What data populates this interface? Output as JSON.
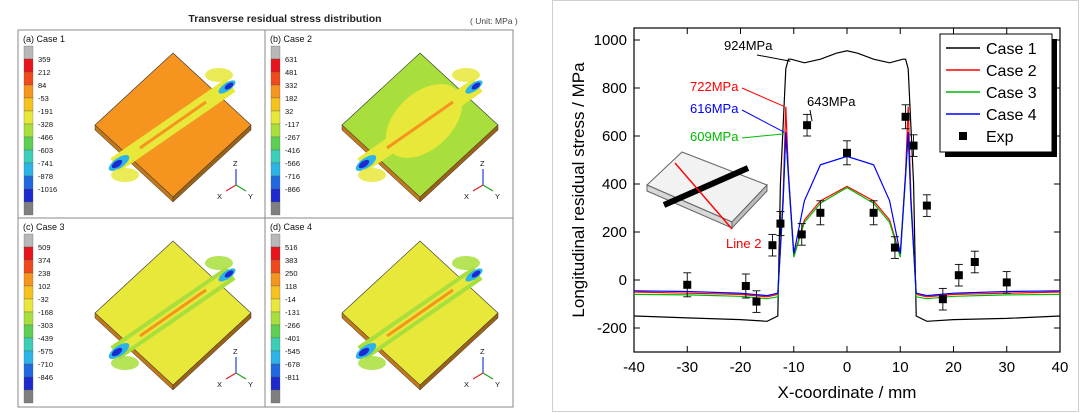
{
  "left_figure": {
    "title": "Transverse residual stress distribution",
    "unit": "( Unit: MPa )",
    "panels": [
      {
        "label": "(a) Case 1",
        "scale": [
          "359",
          "212",
          "84",
          "-53",
          "-191",
          "-328",
          "-466",
          "-603",
          "-741",
          "-878",
          "-1016"
        ]
      },
      {
        "label": "(b) Case 2",
        "scale": [
          "631",
          "481",
          "332",
          "182",
          "32",
          "-117",
          "-267",
          "-416",
          "-566",
          "-716",
          "-866"
        ]
      },
      {
        "label": "(c) Case 3",
        "scale": [
          "509",
          "374",
          "238",
          "102",
          "-32",
          "-168",
          "-303",
          "-439",
          "-575",
          "-710",
          "-846"
        ]
      },
      {
        "label": "(d) Case 4",
        "scale": [
          "516",
          "383",
          "250",
          "118",
          "-14",
          "-131",
          "-266",
          "-401",
          "-545",
          "-678",
          "-811"
        ]
      }
    ],
    "axes_labels": {
      "z": "Z",
      "x": "X",
      "y": "Y"
    },
    "colorbar_colors": [
      "#b8b8b8",
      "#e8141c",
      "#f04a1c",
      "#f5941e",
      "#f5c21e",
      "#e8e83a",
      "#a8df3c",
      "#5cd054",
      "#3ccfb8",
      "#2cb4e8",
      "#2068e0",
      "#1c2ad0",
      "#808080"
    ]
  },
  "chart_data": {
    "type": "line",
    "xlabel": "X-coordinate / mm",
    "ylabel": "Longitudinal residual stress / MPa",
    "xlim": [
      -40,
      40
    ],
    "ylim": [
      -300,
      1050
    ],
    "xticks": [
      -40,
      -30,
      -20,
      -10,
      0,
      10,
      20,
      30,
      40
    ],
    "yticks": [
      -200,
      0,
      200,
      400,
      600,
      800,
      1000
    ],
    "series": [
      {
        "name": "Case 1",
        "color": "#000000",
        "x": [
          -40,
          -30,
          -20,
          -15,
          -13,
          -12.5,
          -11.5,
          -11,
          -10.5,
          -8,
          -5,
          -2,
          0,
          2,
          5,
          8,
          10.5,
          11,
          11.5,
          12.5,
          13,
          15,
          20,
          30,
          40
        ],
        "y": [
          -150,
          -158,
          -165,
          -172,
          -150,
          400,
          880,
          920,
          920,
          905,
          920,
          945,
          955,
          945,
          920,
          905,
          920,
          920,
          880,
          400,
          -150,
          -172,
          -165,
          -160,
          -150
        ]
      },
      {
        "name": "Case 2",
        "color": "#ff0000",
        "x": [
          -40,
          -30,
          -20,
          -15,
          -13,
          -12,
          -11.5,
          -11,
          -10,
          -8,
          -5,
          0,
          5,
          8,
          10,
          11,
          11.5,
          12,
          13,
          15,
          20,
          30,
          40
        ],
        "y": [
          -50,
          -55,
          -60,
          -70,
          -60,
          350,
          722,
          450,
          100,
          250,
          330,
          390,
          330,
          250,
          100,
          450,
          722,
          350,
          -60,
          -70,
          -60,
          -55,
          -50
        ]
      },
      {
        "name": "Case 3",
        "color": "#00bb00",
        "x": [
          -40,
          -30,
          -20,
          -15,
          -13,
          -12,
          -11.5,
          -11,
          -10,
          -8,
          -5,
          0,
          5,
          8,
          10,
          11,
          11.5,
          12,
          13,
          15,
          20,
          30,
          40
        ],
        "y": [
          -60,
          -62,
          -68,
          -78,
          -70,
          320,
          609,
          430,
          95,
          240,
          320,
          385,
          320,
          240,
          95,
          430,
          609,
          320,
          -70,
          -78,
          -68,
          -62,
          -60
        ]
      },
      {
        "name": "Case 4",
        "color": "#0000ff",
        "x": [
          -40,
          -30,
          -20,
          -15,
          -13,
          -12,
          -11.5,
          -11,
          -10,
          -8,
          -5,
          0,
          5,
          8,
          10,
          11,
          11.5,
          12,
          13,
          15,
          20,
          30,
          40
        ],
        "y": [
          -45,
          -48,
          -55,
          -65,
          -55,
          330,
          616,
          440,
          110,
          330,
          480,
          515,
          480,
          330,
          110,
          440,
          616,
          330,
          -55,
          -65,
          -55,
          -48,
          -45
        ]
      }
    ],
    "experiment": {
      "name": "Exp",
      "points": [
        {
          "x": -30,
          "y": -20,
          "err": 50
        },
        {
          "x": -19,
          "y": -25,
          "err": 50
        },
        {
          "x": -17,
          "y": -90,
          "err": 45
        },
        {
          "x": -14,
          "y": 145,
          "err": 45
        },
        {
          "x": -12.5,
          "y": 235,
          "err": 50
        },
        {
          "x": -8.5,
          "y": 190,
          "err": 45
        },
        {
          "x": -5,
          "y": 280,
          "err": 50
        },
        {
          "x": -7.5,
          "y": 645,
          "err": 45
        },
        {
          "x": 0,
          "y": 530,
          "err": 50
        },
        {
          "x": 5,
          "y": 280,
          "err": 50
        },
        {
          "x": 9,
          "y": 135,
          "err": 45
        },
        {
          "x": 11,
          "y": 680,
          "err": 50
        },
        {
          "x": 12.5,
          "y": 560,
          "err": 45
        },
        {
          "x": 15,
          "y": 310,
          "err": 45
        },
        {
          "x": 18,
          "y": -80,
          "err": 45
        },
        {
          "x": 21,
          "y": 20,
          "err": 45
        },
        {
          "x": 24,
          "y": 75,
          "err": 45
        },
        {
          "x": 30,
          "y": -10,
          "err": 45
        }
      ]
    },
    "annotations": {
      "a924": "924MPa",
      "a722": "722MPa",
      "a616": "616MPa",
      "a609": "609MPa",
      "a643": "643MPa",
      "line2": "Line 2"
    }
  }
}
